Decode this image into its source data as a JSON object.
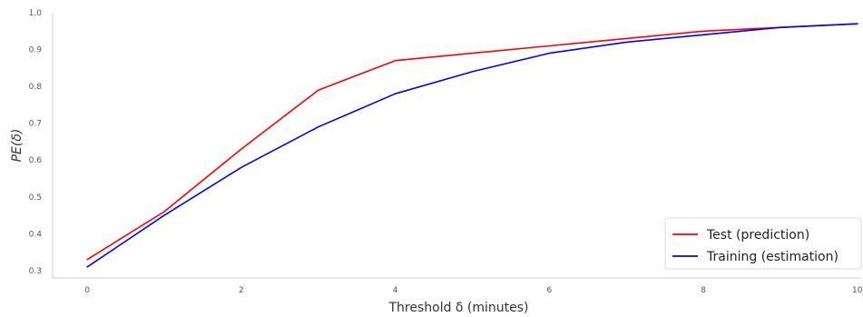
{
  "chart_data": {
    "type": "line",
    "xlabel": "Threshold δ (minutes)",
    "ylabel": "PE(δ)",
    "xlim": [
      -0.45,
      10.05
    ],
    "ylim": [
      0.28,
      1.0
    ],
    "x_ticks": [
      0,
      2,
      4,
      6,
      8,
      10
    ],
    "y_ticks": [
      0.3,
      0.4,
      0.5,
      0.6,
      0.7,
      0.8,
      0.9,
      1.0
    ],
    "x_tick_labels": [
      "0",
      "2",
      "4",
      "6",
      "8",
      "10"
    ],
    "y_tick_labels": [
      "0.3",
      "0.4",
      "0.5",
      "0.6",
      "0.7",
      "0.8",
      "0.9",
      "1.0"
    ],
    "grid": false,
    "legend_position": "bottom-right",
    "x": [
      0,
      1,
      2,
      3,
      4,
      5,
      6,
      7,
      8,
      9,
      10
    ],
    "series": [
      {
        "name": "Test (prediction)",
        "color": "#ff0000",
        "values": [
          0.33,
          0.46,
          0.63,
          0.79,
          0.87,
          0.89,
          0.91,
          0.93,
          0.95,
          0.96,
          0.97
        ]
      },
      {
        "name": "Training (estimation)",
        "color": "#0000ff",
        "values": [
          0.31,
          0.45,
          0.58,
          0.69,
          0.78,
          0.84,
          0.89,
          0.92,
          0.94,
          0.96,
          0.97
        ]
      }
    ]
  }
}
